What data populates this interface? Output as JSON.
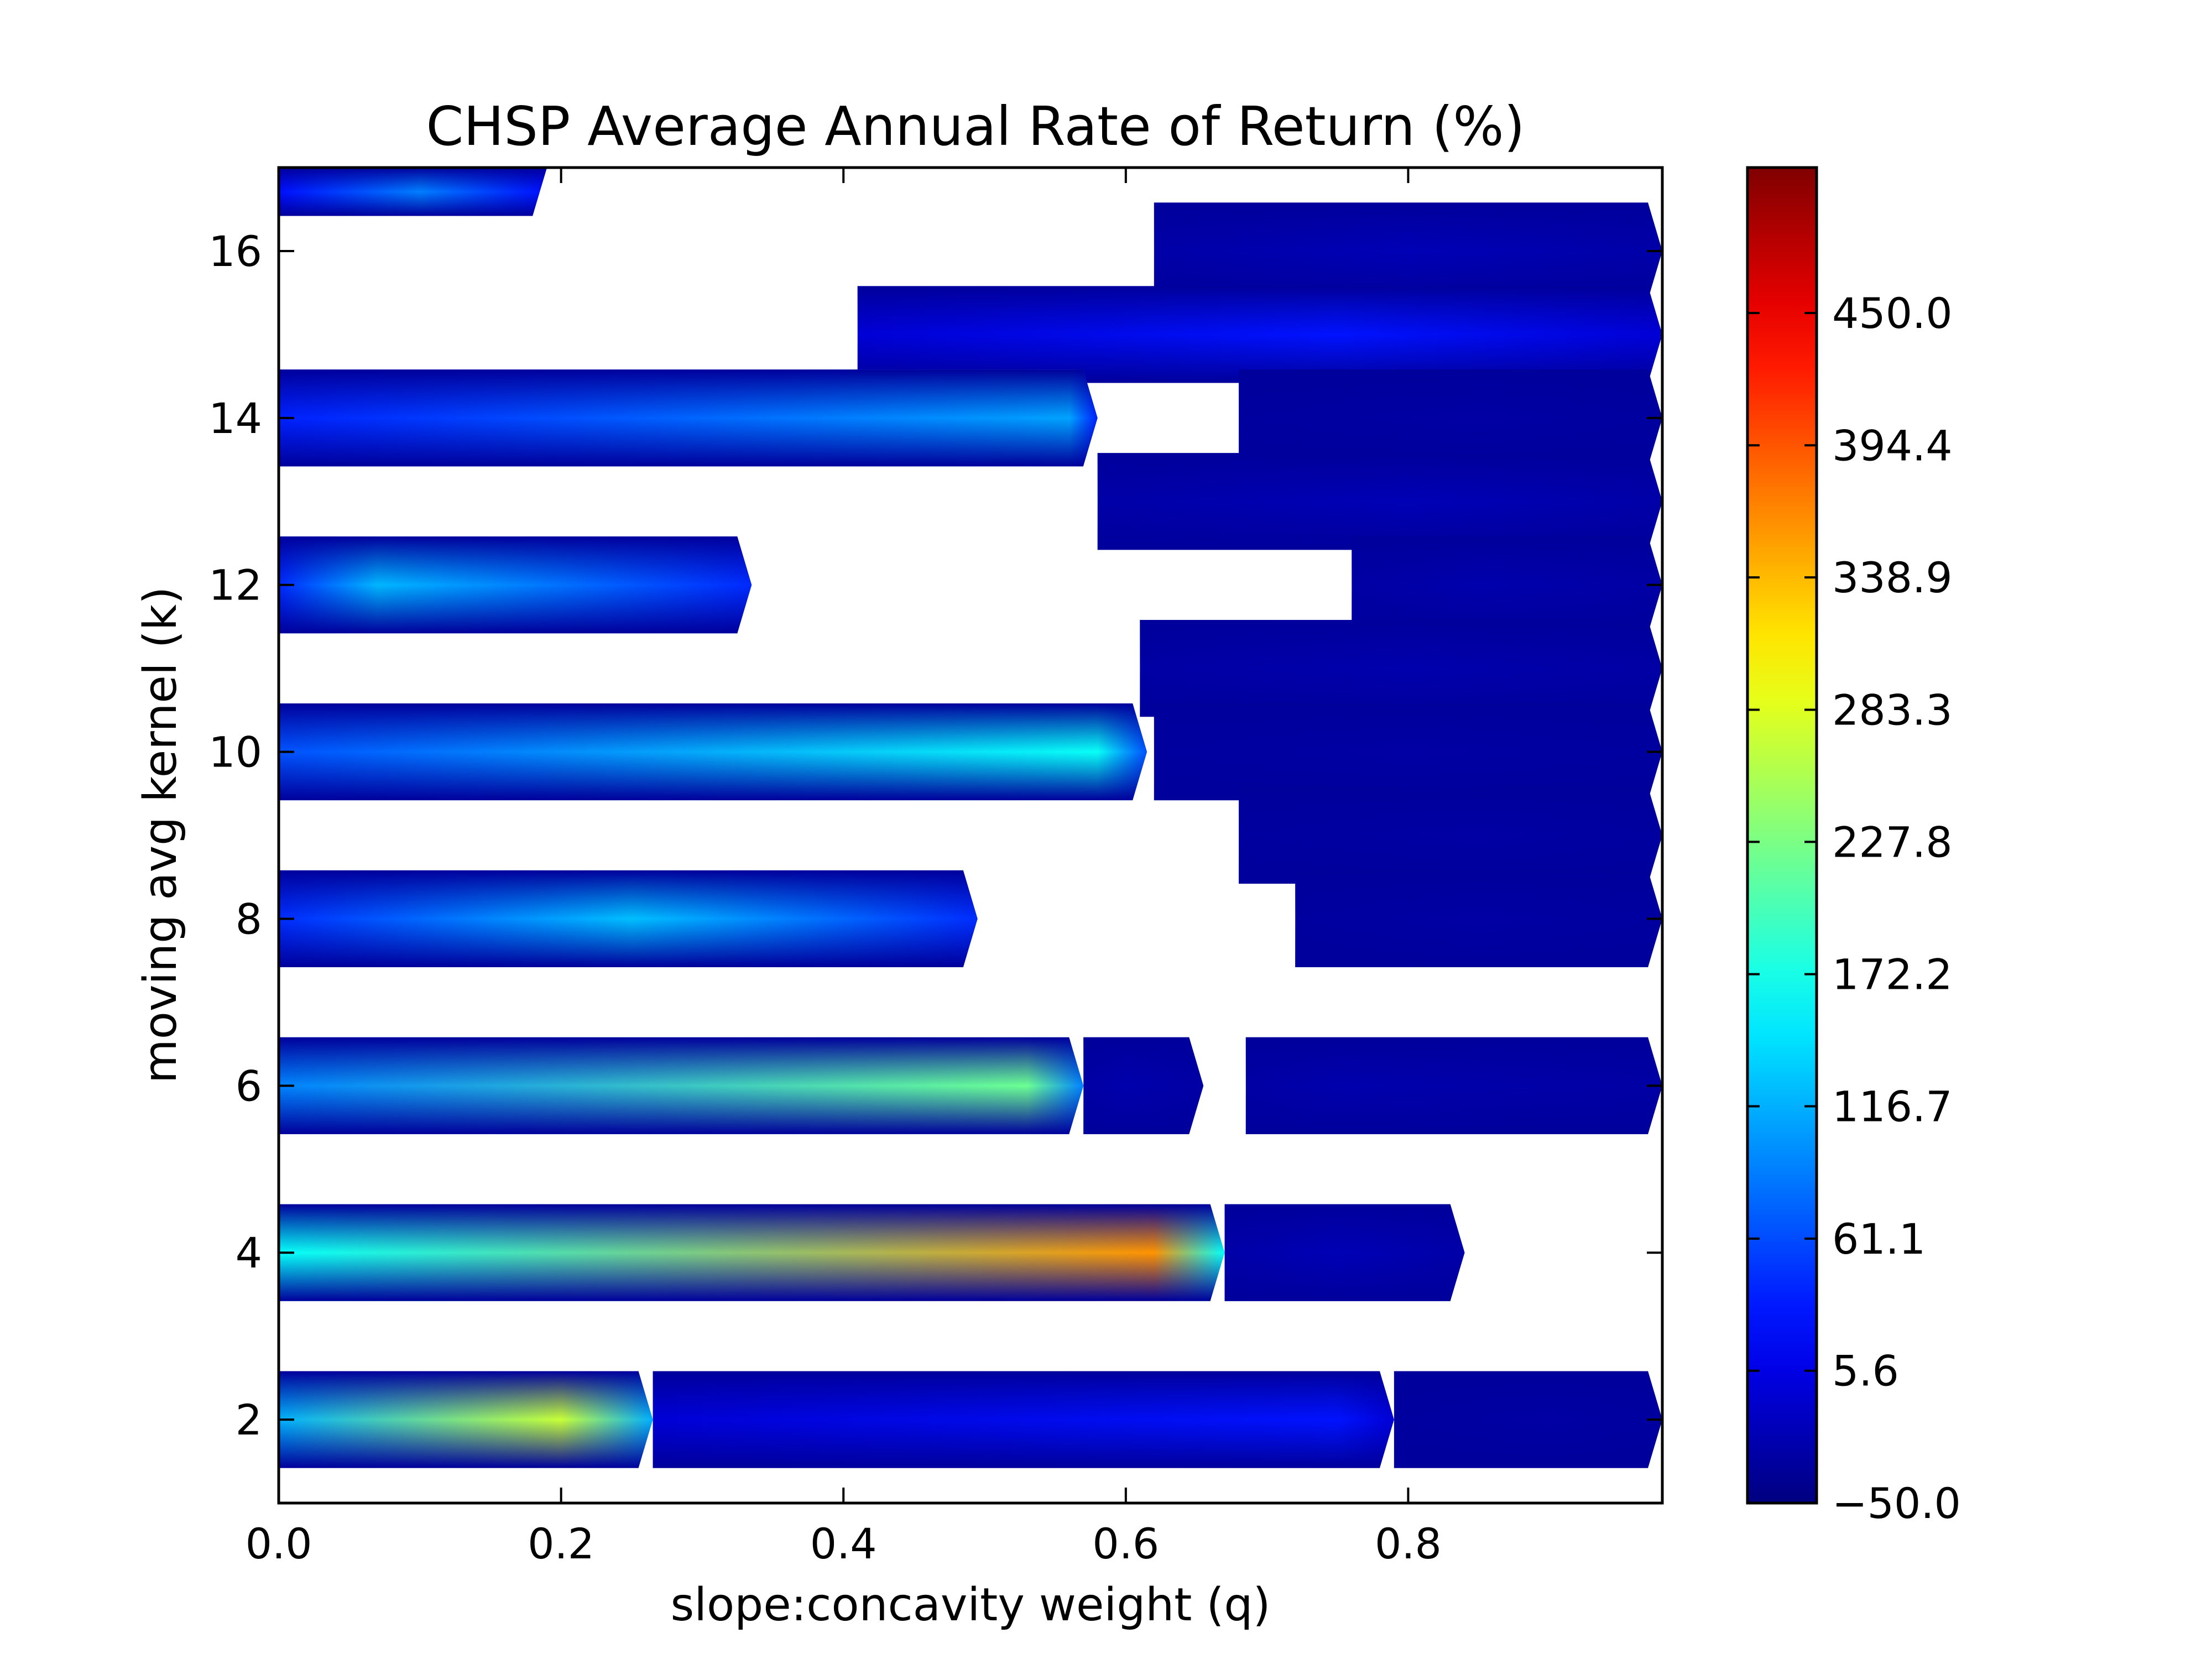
{
  "chart_data": {
    "type": "contour",
    "title": "CHSP Average Annual Rate of Return (%)",
    "xlabel": "slope:concavity weight (q)",
    "ylabel": "moving avg kernel (k)",
    "xlim": [
      0.0,
      0.98
    ],
    "ylim": [
      1,
      17
    ],
    "x_ticks": [
      "0.0",
      "0.2",
      "0.4",
      "0.6",
      "0.8"
    ],
    "x_tick_values": [
      0.0,
      0.2,
      0.4,
      0.6,
      0.8
    ],
    "y_ticks": [
      "2",
      "4",
      "6",
      "8",
      "10",
      "12",
      "14",
      "16"
    ],
    "y_tick_values": [
      2,
      4,
      6,
      8,
      10,
      12,
      14,
      16
    ],
    "colorbar": {
      "ticks": [
        "450.0",
        "394.4",
        "338.9",
        "283.3",
        "227.8",
        "172.2",
        "116.7",
        "61.1",
        "5.6",
        "−50.0"
      ],
      "tick_values": [
        450.0,
        394.4,
        338.9,
        283.3,
        227.8,
        172.2,
        116.7,
        61.1,
        5.6,
        -50.0
      ],
      "range": [
        -50.0,
        511.1
      ],
      "colormap": "jet"
    },
    "missing_region_color": "#ffffff",
    "bands": [
      {
        "k": 17,
        "q_start": 0.0,
        "q_end": 0.19,
        "peak_value": 90,
        "peak_q": 0.1
      },
      {
        "k": 16,
        "q_start": 0.62,
        "q_end": 0.98,
        "peak_value": -20,
        "peak_q": 0.8
      },
      {
        "k": 15,
        "q_start": 0.41,
        "q_end": 0.98,
        "peak_value": 30,
        "peak_q": 0.75
      },
      {
        "k": 14,
        "q_start": 0.0,
        "q_end": 0.58,
        "peak_value": 110,
        "peak_q": 0.56
      },
      {
        "k": 14,
        "q_start": 0.68,
        "q_end": 0.98,
        "peak_value": -30,
        "peak_q": 0.85
      },
      {
        "k": 13,
        "q_start": 0.58,
        "q_end": 0.98,
        "peak_value": -20,
        "peak_q": 0.8
      },
      {
        "k": 12,
        "q_start": 0.0,
        "q_end": 0.335,
        "peak_value": 120,
        "peak_q": 0.07
      },
      {
        "k": 12,
        "q_start": 0.76,
        "q_end": 0.98,
        "peak_value": -25,
        "peak_q": 0.85
      },
      {
        "k": 11,
        "q_start": 0.61,
        "q_end": 0.98,
        "peak_value": -25,
        "peak_q": 0.8
      },
      {
        "k": 10,
        "q_start": 0.0,
        "q_end": 0.615,
        "peak_value": 165,
        "peak_q": 0.58
      },
      {
        "k": 10,
        "q_start": 0.62,
        "q_end": 0.98,
        "peak_value": -30,
        "peak_q": 0.8
      },
      {
        "k": 9,
        "q_start": 0.68,
        "q_end": 0.98,
        "peak_value": -30,
        "peak_q": 0.85
      },
      {
        "k": 8,
        "q_start": 0.0,
        "q_end": 0.495,
        "peak_value": 125,
        "peak_q": 0.25
      },
      {
        "k": 8,
        "q_start": 0.72,
        "q_end": 0.98,
        "peak_value": -30,
        "peak_q": 0.85
      },
      {
        "k": 6,
        "q_start": 0.0,
        "q_end": 0.57,
        "peak_value": 220,
        "peak_q": 0.53
      },
      {
        "k": 6,
        "q_start": 0.57,
        "q_end": 0.655,
        "peak_value": -25,
        "peak_q": 0.6
      },
      {
        "k": 6,
        "q_start": 0.685,
        "q_end": 0.98,
        "peak_value": -25,
        "peak_q": 0.75
      },
      {
        "k": 4,
        "q_start": 0.0,
        "q_end": 0.67,
        "peak_value": 360,
        "peak_q": 0.62
      },
      {
        "k": 4,
        "q_start": 0.67,
        "q_end": 0.84,
        "peak_value": -20,
        "peak_q": 0.75
      },
      {
        "k": 2,
        "q_start": 0.0,
        "q_end": 0.265,
        "peak_value": 270,
        "peak_q": 0.2
      },
      {
        "k": 2,
        "q_start": 0.265,
        "q_end": 0.79,
        "peak_value": 30,
        "peak_q": 0.75
      },
      {
        "k": 2,
        "q_start": 0.79,
        "q_end": 0.98,
        "peak_value": -30,
        "peak_q": 0.9
      }
    ]
  }
}
